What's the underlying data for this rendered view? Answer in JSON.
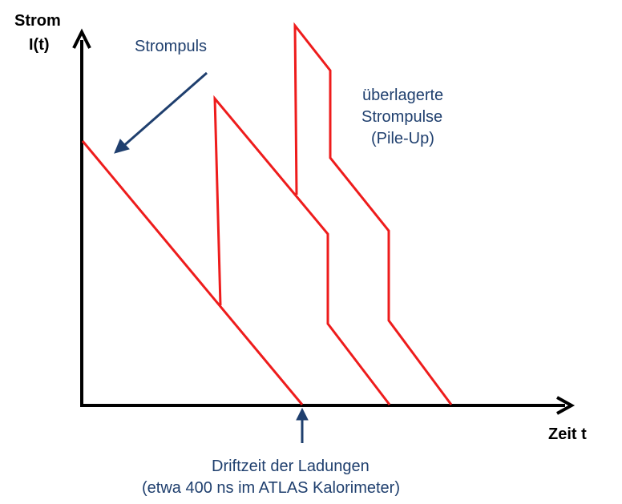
{
  "axes": {
    "y_label_line1": "Strom",
    "y_label_line2": "I(t)",
    "x_label": "Zeit t"
  },
  "annotations": {
    "single_pulse": "Strompuls",
    "overlay_line1": "überlagerte",
    "overlay_line2": "Strompulse",
    "overlay_line3": "(Pile-Up)",
    "drift_line1": "Driftzeit der Ladungen",
    "drift_line2": "(etwa 400 ns im ATLAS Kalorimeter)"
  },
  "colors": {
    "pulse": "#ee1c1c",
    "axis": "#000000",
    "annotation": "#1f3f6e"
  }
}
